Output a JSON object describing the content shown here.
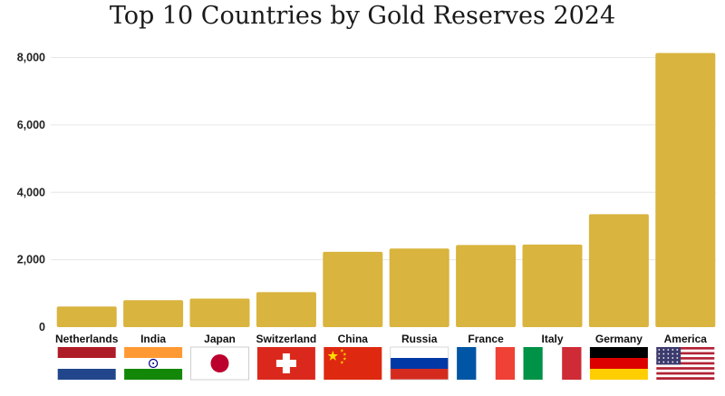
{
  "chart_data": {
    "type": "bar",
    "title": "Top 10 Countries by Gold Reserves 2024",
    "categories": [
      "Netherlands",
      "India",
      "Japan",
      "Switzerland",
      "China",
      "Russia",
      "France",
      "Italy",
      "Germany",
      "America"
    ],
    "values": [
      612,
      800,
      846,
      1040,
      2235,
      2333,
      2437,
      2452,
      3352,
      8133
    ],
    "flags": [
      "netherlands-flag-icon",
      "india-flag-icon",
      "japan-flag-icon",
      "switzerland-flag-icon",
      "china-flag-icon",
      "russia-flag-icon",
      "france-flag-icon",
      "italy-flag-icon",
      "germany-flag-icon",
      "usa-flag-icon"
    ],
    "ylim": [
      0,
      8000
    ],
    "yticks": [
      0,
      2000,
      4000,
      6000,
      8000
    ],
    "ytick_labels": [
      "0",
      "2,000",
      "4,000",
      "6,000",
      "8,000"
    ],
    "xlabel": "",
    "ylabel": "",
    "grid": true,
    "bar_color": "#d9b43e",
    "grid_color": "#e6e6e6"
  }
}
